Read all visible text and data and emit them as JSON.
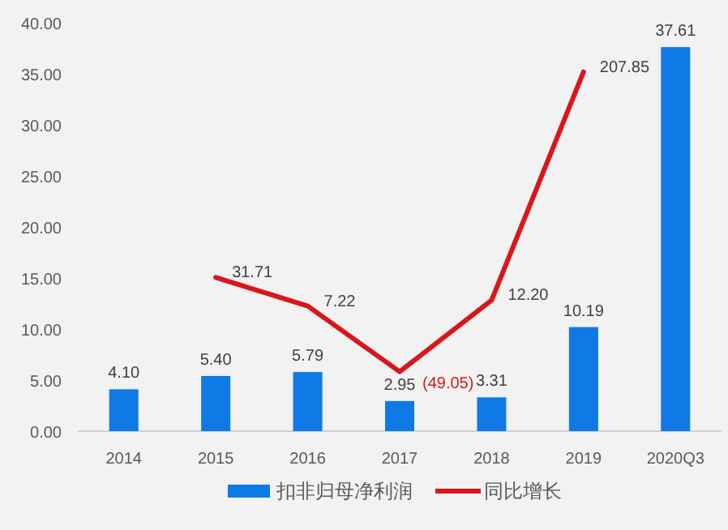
{
  "chart_data": {
    "type": "bar",
    "categories": [
      "2014",
      "2015",
      "2016",
      "2017",
      "2018",
      "2019",
      "2020Q3"
    ],
    "series": [
      {
        "name": "扣非归母净利润",
        "color": "#0f7ae5",
        "values": [
          4.1,
          5.4,
          5.79,
          2.95,
          3.31,
          10.19,
          37.61
        ],
        "value_labels": [
          "4.10",
          "5.40",
          "5.79",
          "2.95",
          "3.31",
          "10.19",
          "37.61"
        ]
      },
      {
        "name": "同比增长",
        "type": "line",
        "axis": "y2",
        "color": "#d9161c",
        "values": [
          null,
          31.71,
          7.22,
          -49.05,
          12.2,
          207.85,
          null
        ],
        "value_labels": [
          null,
          "31.71",
          "7.22",
          "(49.05)",
          "12.20",
          "207.85",
          null
        ]
      }
    ],
    "ylim": [
      0,
      40
    ],
    "yticks": [
      {
        "value": 0,
        "label": "0.00"
      },
      {
        "value": 5,
        "label": "5.00"
      },
      {
        "value": 10,
        "label": "10.00"
      },
      {
        "value": 15,
        "label": "15.00"
      },
      {
        "value": 20,
        "label": "20.00"
      },
      {
        "value": 25,
        "label": "25.00"
      },
      {
        "value": 30,
        "label": "30.00"
      },
      {
        "value": 35,
        "label": "35.00"
      },
      {
        "value": 40,
        "label": "40.00"
      }
    ],
    "legend": "bottom"
  }
}
